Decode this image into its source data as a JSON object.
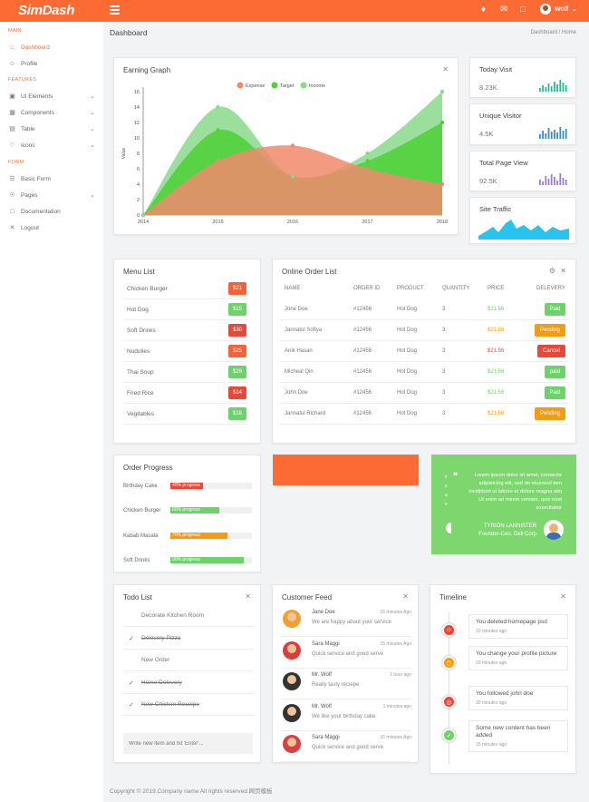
{
  "brand": "SimDash",
  "topbar": {
    "user": "Wolf",
    "colors": {
      "accent": "#fd6b35"
    }
  },
  "sidebar": {
    "sections": [
      "MAIN",
      "FEATURES",
      "FORM"
    ],
    "items": [
      {
        "label": "Dashboard",
        "icon": "home-icon"
      },
      {
        "label": "Profile",
        "icon": "user-icon"
      },
      {
        "label": "UI Elements",
        "icon": "layout-icon"
      },
      {
        "label": "Components",
        "icon": "components-icon"
      },
      {
        "label": "Table",
        "icon": "table-icon"
      },
      {
        "label": "Icons",
        "icon": "heart-icon"
      },
      {
        "label": "Basic Form",
        "icon": "form-icon"
      },
      {
        "label": "Pages",
        "icon": "pages-icon"
      },
      {
        "label": "Documentation",
        "icon": "document-icon"
      },
      {
        "label": "Logout",
        "icon": "logout-icon"
      }
    ]
  },
  "breadcrumb": {
    "title": "Dashboard",
    "path": "Dashboard  /  Home"
  },
  "earning": {
    "title": "Earning Graph",
    "legend": [
      "Expense",
      "Target",
      "Income"
    ]
  },
  "chart_data": {
    "type": "area",
    "title": "Earning Graph",
    "x": [
      "2014",
      "2015",
      "2016",
      "2017",
      "2018"
    ],
    "ylabel": "Value",
    "yticks": [
      "16",
      "14",
      "12",
      "10",
      "8",
      "6",
      "4",
      "2",
      "0"
    ],
    "ylim": [
      0,
      16
    ],
    "series": [
      {
        "name": "Expense",
        "color": "#f08a6b",
        "values": [
          0,
          7,
          9,
          6,
          4
        ]
      },
      {
        "name": "Target",
        "color": "#4cd137",
        "values": [
          0,
          11,
          5,
          7,
          12
        ]
      },
      {
        "name": "Income",
        "color": "#88d98a",
        "values": [
          0,
          14,
          5,
          8,
          16
        ]
      }
    ]
  },
  "stats": [
    {
      "title": "Today Visit",
      "value": "8.23K",
      "color": "#26b99a"
    },
    {
      "title": "Unique Visitor",
      "value": "4.5K",
      "color": "#3c8dbc"
    },
    {
      "title": "Total Page View",
      "value": "92.5K",
      "color": "#9b7fd1"
    },
    {
      "title": "Site Traffic",
      "value": ""
    }
  ],
  "menu": {
    "title": "Menu List",
    "items": [
      {
        "name": "Chicken Burger",
        "price": "$21",
        "color": "#f4623a"
      },
      {
        "name": "Hot Dog",
        "price": "$15",
        "color": "#6dd26a"
      },
      {
        "name": "Soft Drinks",
        "price": "$30",
        "color": "#e8483a"
      },
      {
        "name": "Nudulles",
        "price": "$25",
        "color": "#f4623a"
      },
      {
        "name": "Thai Soup",
        "price": "$29",
        "color": "#6dd26a"
      },
      {
        "name": "Fried Rice",
        "price": "$14",
        "color": "#e8483a"
      },
      {
        "name": "Vegitables",
        "price": "$18",
        "color": "#6dd26a"
      }
    ]
  },
  "orders": {
    "title": "Online Order List",
    "columns": [
      "NAME",
      "ORDER ID",
      "PRODUCT",
      "QUANTITY",
      "PRICE",
      "DELEVERY"
    ],
    "rows": [
      {
        "name": "Jone Doe",
        "id": "#12456",
        "product": "Hot Dog",
        "qty": "3",
        "price": "$21.56",
        "price_color": "#6dd26a",
        "status": "Paid",
        "status_color": "#6dd26a"
      },
      {
        "name": "Jannatul Sofiya",
        "id": "#12456",
        "product": "Hot Dog",
        "qty": "3",
        "price": "$21.56",
        "price_color": "#f39c12",
        "status": "Pending",
        "status_color": "#f39c12"
      },
      {
        "name": "Anik Hasan",
        "id": "#12456",
        "product": "Hot Dog",
        "qty": "3",
        "price": "$21.56",
        "price_color": "#e8483a",
        "status": "Cancel",
        "status_color": "#e8483a"
      },
      {
        "name": "Micheal Qin",
        "id": "#12456",
        "product": "Hot Dog",
        "qty": "3",
        "price": "$21.56",
        "price_color": "#6dd26a",
        "status": "paid",
        "status_color": "#6dd26a"
      },
      {
        "name": "John Doe",
        "id": "#12456",
        "product": "Hot Dog",
        "qty": "3",
        "price": "$21.56",
        "price_color": "#6dd26a",
        "status": "Paid",
        "status_color": "#6dd26a"
      },
      {
        "name": "Jannatul Richard",
        "id": "#12456",
        "product": "Hot Dog",
        "qty": "3",
        "price": "$21.56",
        "price_color": "#f39c12",
        "status": "Pending",
        "status_color": "#f39c12"
      }
    ]
  },
  "progress": {
    "title": "Order Progress",
    "items": [
      {
        "label": "Birthday Cake",
        "text": "40% progress",
        "value": 0.4,
        "color": "#e8483a"
      },
      {
        "label": "Chicken Burger",
        "text": "60% progress",
        "value": 0.6,
        "color": "#6dd26a"
      },
      {
        "label": "Kabab Masala",
        "text": "70% progress",
        "value": 0.7,
        "color": "#f39c12"
      },
      {
        "label": "Soft Drinks",
        "text": "90% progress",
        "value": 0.9,
        "color": "#6dd26a"
      }
    ]
  },
  "quote": {
    "text": "Lorem ipsum dolor sit amet, consecte adipisicing elit, sed do eiusmod tem incididunt ut labore et dolore magna aliq Ut enim ad minim veniam, quis nost exercitatior",
    "author": "TYRION LANNISTER",
    "role": "Founder-Ceo. Dell Corp"
  },
  "todo": {
    "title": "Todo List",
    "items": [
      {
        "text": "Decorate Kitchen Room",
        "done": false
      },
      {
        "text": "Delevery Pizza",
        "done": true
      },
      {
        "text": "New Order",
        "done": false
      },
      {
        "text": "Home Delevery",
        "done": true
      },
      {
        "text": "New Chicken Receipe",
        "done": true
      }
    ],
    "placeholder": "Write new item and hit 'Enter'..."
  },
  "feed": {
    "title": "Customer Feed",
    "items": [
      {
        "name": "Jane Doe",
        "time": "15 minutes Ago",
        "msg": "We are happy about your service",
        "color": "#f0a030"
      },
      {
        "name": "Sara Maggi",
        "time": "15 minutes Ago",
        "msg": "Quick service and good serve",
        "color": "#d84040"
      },
      {
        "name": "Mr. Wolf",
        "time": "1 hour ago",
        "msg": "Really tasty reciepe",
        "color": "#333333"
      },
      {
        "name": "Mr. Wolf",
        "time": "1 minutes ago",
        "msg": "We like your birthday cake",
        "color": "#333333"
      },
      {
        "name": "Sara Maggi",
        "time": "15 minutes Ago",
        "msg": "Quick service and good serve",
        "color": "#d84040"
      }
    ]
  },
  "timeline": {
    "title": "Timeline",
    "items": [
      {
        "text": "You deleted homepage psd",
        "time": "10 minutes ago",
        "color": "#e8483a",
        "icon": "smile-icon"
      },
      {
        "text": "You change your profile picture",
        "time": "20 minutes ago",
        "color": "#f39c12",
        "icon": "clock-icon"
      },
      {
        "text": "You followed john doe",
        "time": "30 minutes ago",
        "color": "#e8483a",
        "icon": "target-icon"
      },
      {
        "text": "Some new content has been added",
        "time": "15 minutes ago",
        "color": "#6dd26a",
        "icon": "check-icon"
      }
    ]
  },
  "footer": "Copyright © 2019.Company name All rights reserved.网页模板"
}
